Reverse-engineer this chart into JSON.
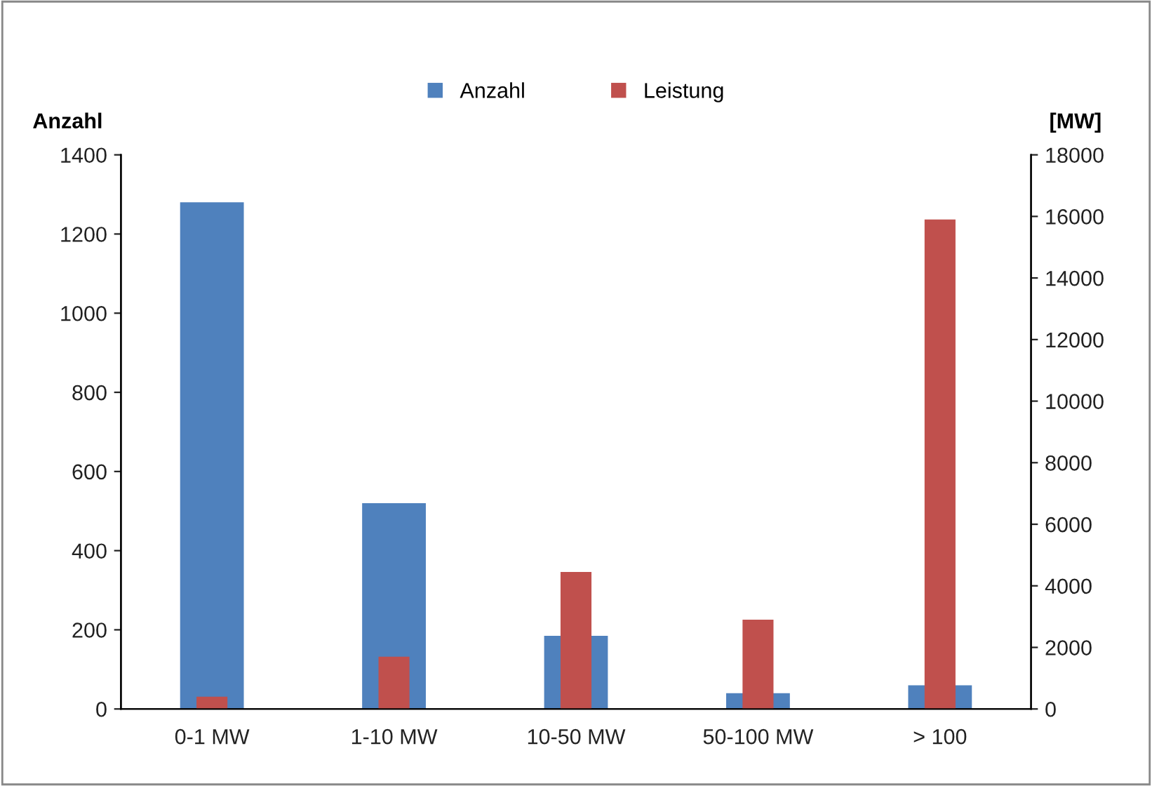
{
  "chart_data": {
    "type": "bar",
    "ylabel": "Anzahl",
    "y2label": "[MW]",
    "categories": [
      "0-1 MW",
      "1-10 MW",
      "10-50 MW",
      "50-100 MW",
      "> 100"
    ],
    "series": [
      {
        "name": "Anzahl",
        "color": "#4f81bd",
        "values": [
          1280,
          520,
          185,
          40,
          60
        ]
      },
      {
        "name": "Leistung",
        "color": "#c0504d",
        "axis": "y2",
        "values": [
          400,
          1700,
          4450,
          2900,
          15900
        ]
      }
    ],
    "ylim": [
      0,
      1400
    ],
    "yticks": [
      0,
      200,
      400,
      600,
      800,
      1000,
      1200,
      1400
    ],
    "y2lim": [
      0,
      18000
    ],
    "y2ticks": [
      0,
      2000,
      4000,
      6000,
      8000,
      10000,
      12000,
      14000,
      16000,
      18000
    ],
    "grid": false,
    "legend": "top"
  }
}
